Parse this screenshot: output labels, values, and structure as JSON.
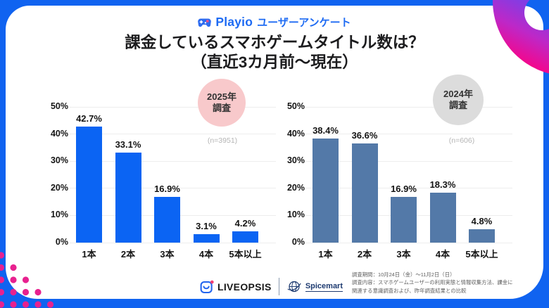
{
  "header": {
    "brand": "Playio",
    "suffix": "ユーザーアンケート"
  },
  "title": {
    "line1": "課金しているスマホゲームタイトル数は？",
    "line2": "（直近3カ月前〜現在）"
  },
  "chart_data": [
    {
      "type": "bar",
      "title": "2025年調査",
      "badge": {
        "line1": "2025年",
        "line2": "調査",
        "bg": "#f8c9cb"
      },
      "sample": "(n=3951)",
      "categories": [
        "1本",
        "2本",
        "3本",
        "4本",
        "5本以上"
      ],
      "values": [
        42.7,
        33.1,
        16.9,
        3.1,
        4.2
      ],
      "value_labels": [
        "42.7%",
        "33.1%",
        "16.9%",
        "3.1%",
        "4.2%"
      ],
      "bar_color": "#0b64f3",
      "ylim": [
        0,
        50
      ],
      "yticks": [
        0,
        10,
        20,
        30,
        40,
        50
      ],
      "ytick_labels": [
        "0%",
        "10%",
        "20%",
        "30%",
        "40%",
        "50%"
      ],
      "grid": true,
      "legend": false
    },
    {
      "type": "bar",
      "title": "2024年調査",
      "badge": {
        "line1": "2024年",
        "line2": "調査",
        "bg": "#dcdcdc"
      },
      "sample": "(n=606)",
      "categories": [
        "1本",
        "2本",
        "3本",
        "4本",
        "5本以上"
      ],
      "values": [
        38.4,
        36.6,
        16.9,
        18.3,
        4.8
      ],
      "value_labels": [
        "38.4%",
        "36.6%",
        "16.9%",
        "18.3%",
        "4.8%"
      ],
      "bar_color": "#5379a8",
      "ylim": [
        0,
        50
      ],
      "yticks": [
        0,
        10,
        20,
        30,
        40,
        50
      ],
      "ytick_labels": [
        "0%",
        "10%",
        "20%",
        "30%",
        "40%",
        "50%"
      ],
      "grid": true,
      "legend": false
    }
  ],
  "footer": {
    "liveopsis": "LIVEOPSIS",
    "spicemart": "Spicemart",
    "survey_lines": [
      "調査期間：10月24日（金）〜11月2日（日）",
      "調査内容：スマホゲームユーザーの利用実態と情報収集方法、課金に",
      "関連する意識調査および、昨年調査結果との比較"
    ]
  },
  "colors": {
    "frame": "#1063f0",
    "bar_2025": "#0b64f3",
    "bar_2024": "#5379a8",
    "brand_blue": "#1e6bf3",
    "accent_purple": "#6d3ef2",
    "accent_pink": "#ff0080",
    "dot": "#e8218f"
  }
}
